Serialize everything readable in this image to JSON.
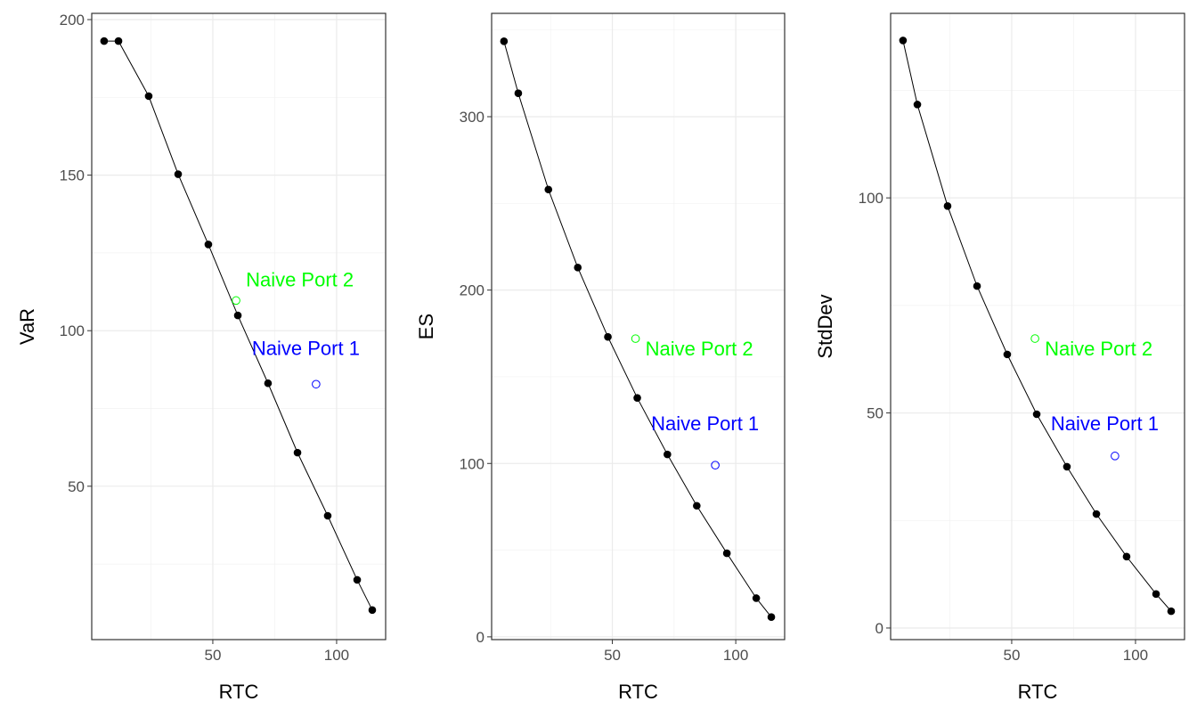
{
  "chart_data": [
    {
      "type": "line",
      "xlabel": "RTC",
      "ylabel": "VaR",
      "xlim": [
        1.1,
        119.8
      ],
      "ylim": [
        0.7,
        202
      ],
      "xticks": [
        50,
        100
      ],
      "yticks": [
        50,
        100,
        150,
        200
      ],
      "grid": true,
      "series": [
        {
          "x": [
            6.1,
            11.9,
            24.1,
            36,
            48.2,
            60.1,
            72.3,
            84.2,
            96.4,
            108.3,
            114.4
          ],
          "y": [
            193.1,
            193.1,
            175.4,
            150.3,
            127.7,
            104.9,
            83.1,
            60.8,
            40.5,
            19.9,
            10.2
          ],
          "color": "#000000"
        }
      ],
      "annotations": [
        {
          "text": "Naive Port 2",
          "x": 59.4,
          "y": 109.7,
          "color": "#00ff00"
        },
        {
          "text": "Naive Port 1",
          "x": 91.7,
          "y": 82.8,
          "color": "#0000ff"
        }
      ]
    },
    {
      "type": "line",
      "xlabel": "RTC",
      "ylabel": "ES",
      "xlim": [
        1.1,
        119.8
      ],
      "ylim": [
        -1.6,
        359.6
      ],
      "xticks": [
        50,
        100
      ],
      "yticks": [
        0,
        100,
        200,
        300
      ],
      "grid": true,
      "series": [
        {
          "x": [
            6.1,
            11.9,
            24.1,
            36,
            48.2,
            60.1,
            72.3,
            84.2,
            96.4,
            108.3,
            114.4
          ],
          "y": [
            343.5,
            313.5,
            258,
            213,
            173,
            137.8,
            105.2,
            75.6,
            48.2,
            22.3,
            11.4
          ],
          "color": "#000000"
        }
      ],
      "annotations": [
        {
          "text": "Naive Port 2",
          "x": 59.4,
          "y": 172,
          "color": "#00ff00"
        },
        {
          "text": "Naive Port 1",
          "x": 91.7,
          "y": 99,
          "color": "#0000ff"
        }
      ]
    },
    {
      "type": "line",
      "xlabel": "RTC",
      "ylabel": "StdDev",
      "xlim": [
        1.1,
        119.8
      ],
      "ylim": [
        -2.7,
        142.9
      ],
      "xticks": [
        50,
        100
      ],
      "yticks": [
        0,
        50,
        100
      ],
      "grid": true,
      "series": [
        {
          "x": [
            6.1,
            11.9,
            24.1,
            36,
            48.2,
            60.1,
            72.3,
            84.2,
            96.4,
            108.3,
            114.4
          ],
          "y": [
            136.6,
            121.7,
            98.1,
            79.5,
            63.6,
            49.7,
            37.5,
            26.5,
            16.6,
            7.9,
            3.9
          ],
          "color": "#000000"
        }
      ],
      "annotations": [
        {
          "text": "Naive Port 2",
          "x": 59.4,
          "y": 67.3,
          "color": "#00ff00"
        },
        {
          "text": "Naive Port 1",
          "x": 91.7,
          "y": 40,
          "color": "#0000ff"
        }
      ]
    }
  ]
}
